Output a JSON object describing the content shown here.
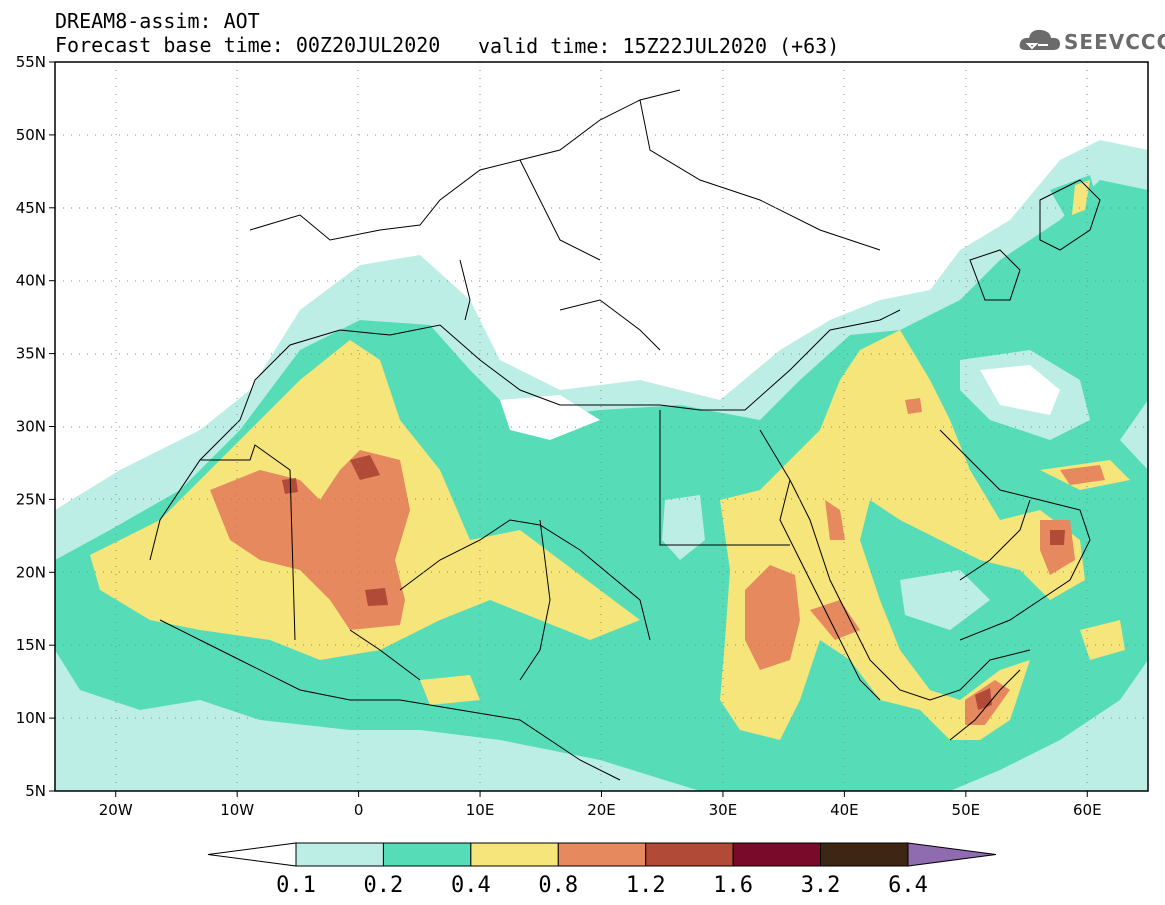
{
  "header": {
    "title": "DREAM8-assim: AOT",
    "forecast": "Forecast base time: 00Z20JUL2020",
    "valid": "valid time: 15Z22JUL2020 (+63)",
    "logo_text": "SEEVCCC"
  },
  "map": {
    "lon_range": [
      -25,
      65
    ],
    "lat_range": [
      5,
      55
    ],
    "lon_ticks": [
      "20W",
      "10W",
      "0",
      "10E",
      "20E",
      "30E",
      "40E",
      "50E",
      "60E"
    ],
    "lat_ticks": [
      "55N",
      "50N",
      "45N",
      "40N",
      "35N",
      "30N",
      "25N",
      "20N",
      "15N",
      "10N",
      "5N"
    ],
    "grid": true
  },
  "colorbar": {
    "labels": [
      "0.1",
      "0.2",
      "0.4",
      "0.8",
      "1.2",
      "1.6",
      "3.2",
      "6.4"
    ],
    "colors": [
      "#ffffff",
      "#bdeee6",
      "#56dcb6",
      "#f5e57a",
      "#e6895f",
      "#b14a36",
      "#7a0a2a",
      "#3d2614",
      "#8f6bb0"
    ]
  },
  "icons": [
    "cloud-logo-icon"
  ]
}
